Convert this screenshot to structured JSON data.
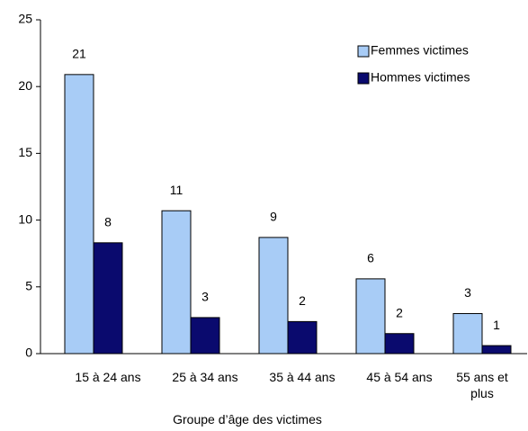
{
  "chart_data": {
    "type": "bar",
    "x_label": "Groupe d’âge des victimes",
    "categories": [
      "15 à 24 ans",
      "25 à 34 ans",
      "35 à 44 ans",
      "45 à 54 ans",
      "55 ans et plus"
    ],
    "series": [
      {
        "name": "Femmes victimes",
        "color": "#a8ccf6",
        "values": [
          20.9,
          10.7,
          8.7,
          5.6,
          3.0
        ],
        "value_labels": [
          21,
          11,
          9,
          6,
          3
        ]
      },
      {
        "name": "Hommes victimes",
        "color": "#0a0a6e",
        "values": [
          8.3,
          2.7,
          2.4,
          1.5,
          0.6
        ],
        "value_labels": [
          8,
          3,
          2,
          2,
          1
        ]
      }
    ],
    "ylim": [
      0,
      25
    ],
    "yticks": [
      0,
      5,
      10,
      15,
      20,
      25
    ],
    "legend": "upper right"
  }
}
